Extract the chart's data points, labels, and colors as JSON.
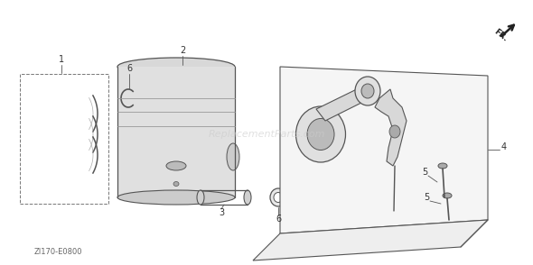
{
  "background_color": "#ffffff",
  "line_color": "#555555",
  "label_color": "#333333",
  "bottom_code": "ZI170-E0800",
  "fr_label": "FR.",
  "figsize": [
    5.9,
    2.94
  ],
  "dpi": 100
}
